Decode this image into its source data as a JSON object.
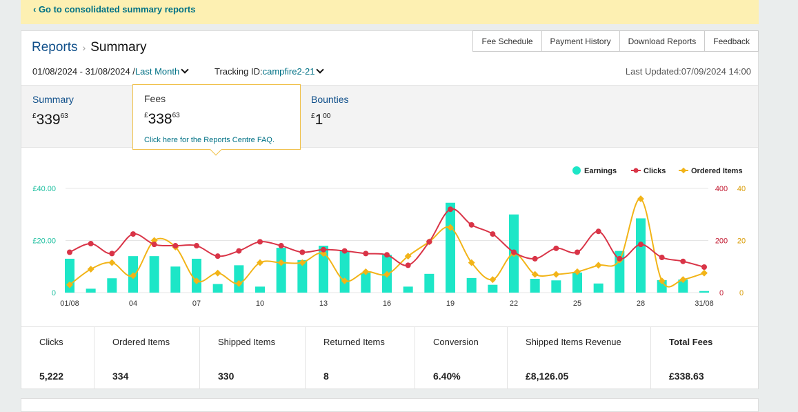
{
  "banner": {
    "link": "‹ Go to consolidated summary reports"
  },
  "breadcrumb": {
    "reports": "Reports",
    "separator": "›",
    "current": "Summary"
  },
  "top_buttons": [
    "Fee Schedule",
    "Payment History",
    "Download Reports",
    "Feedback"
  ],
  "date_range": {
    "value": "01/08/2024 - 31/08/2024 /",
    "preset": "Last Month"
  },
  "tracking": {
    "label": "Tracking ID:",
    "value": "campfire2-21"
  },
  "last_updated": "Last Updated:07/09/2024 14:00",
  "tabs": {
    "summary": {
      "label": "Summary",
      "currency": "£",
      "whole": "339",
      "fraction": "63"
    },
    "fees": {
      "label": "Fees",
      "currency": "£",
      "whole": "338",
      "fraction": "63",
      "faq": "Click here for the Reports Centre FAQ."
    },
    "bounties": {
      "label": "Bounties",
      "currency": "£",
      "whole": "1",
      "fraction": "00"
    }
  },
  "colors": {
    "earnings": "#1de6c7",
    "clicks": "#d93447",
    "ordered": "#f2b418",
    "teal_link": "#007185",
    "banner": "#fdf0b2"
  },
  "chart_data": {
    "type": "bar",
    "legend": [
      "Earnings",
      "Clicks",
      "Ordered Items"
    ],
    "legend_position": "top-right",
    "x": [
      "01/08",
      "02",
      "03",
      "04",
      "05",
      "06",
      "07",
      "08",
      "09",
      "10",
      "11",
      "12",
      "13",
      "14",
      "15",
      "16",
      "17",
      "18",
      "19",
      "20",
      "21",
      "22",
      "23",
      "24",
      "25",
      "26",
      "27",
      "28",
      "29",
      "30",
      "31/08"
    ],
    "x_tick_labels": [
      "01/08",
      "04",
      "07",
      "10",
      "13",
      "16",
      "19",
      "22",
      "25",
      "28",
      "31/08"
    ],
    "series": [
      {
        "name": "Earnings",
        "axis": "left",
        "type": "bar",
        "values": [
          13,
          1.5,
          5.5,
          14,
          14,
          10,
          13,
          3.3,
          10.5,
          2.3,
          17.2,
          12.5,
          18,
          16,
          7.7,
          14.5,
          2.3,
          7.2,
          34.5,
          5.6,
          3,
          30,
          5.3,
          4.7,
          7.7,
          3.5,
          16,
          28.5,
          4.8,
          5,
          0.6
        ]
      },
      {
        "name": "Clicks",
        "axis": "right_red",
        "type": "line",
        "values": [
          155,
          188,
          150,
          225,
          185,
          180,
          180,
          140,
          160,
          195,
          180,
          155,
          165,
          160,
          150,
          145,
          105,
          195,
          320,
          260,
          225,
          155,
          130,
          170,
          155,
          235,
          130,
          185,
          135,
          120,
          98
        ]
      },
      {
        "name": "Ordered Items",
        "axis": "right_orange",
        "type": "line",
        "values": [
          3,
          9,
          11.5,
          6.5,
          20,
          17.5,
          4.5,
          7.5,
          3.5,
          11.5,
          11.5,
          11.5,
          15,
          4.5,
          8,
          7,
          14,
          19.5,
          25,
          11.5,
          5,
          15,
          7,
          7,
          8,
          10.5,
          12.5,
          36,
          4.5,
          5,
          7.5
        ]
      }
    ],
    "axes": {
      "left": {
        "ticks": [
          "£40.00",
          "£20.00",
          "0"
        ],
        "range": [
          0,
          40
        ]
      },
      "right_red": {
        "ticks": [
          "400",
          "200",
          "0"
        ],
        "range": [
          0,
          400
        ]
      },
      "right_orange": {
        "ticks": [
          "40",
          "20",
          "0"
        ],
        "range": [
          0,
          40
        ]
      }
    },
    "grid": true
  },
  "metrics": [
    {
      "label": "Clicks",
      "value": "5,222"
    },
    {
      "label": "Ordered Items",
      "value": "334"
    },
    {
      "label": "Shipped Items",
      "value": "330"
    },
    {
      "label": "Returned Items",
      "value": "8"
    },
    {
      "label": "Conversion",
      "value": "6.40%"
    },
    {
      "label": "Shipped Items Revenue",
      "value": "£8,126.05"
    },
    {
      "label": "Total Fees",
      "value": "£338.63"
    }
  ]
}
